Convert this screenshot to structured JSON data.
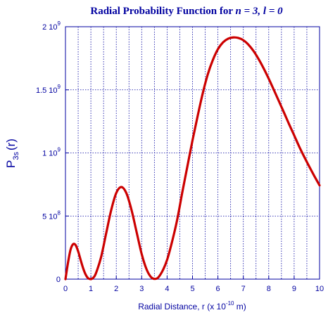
{
  "chart_data": {
    "type": "line",
    "title": {
      "prefix": "Radial Probability Function for ",
      "n_symbol": "n",
      "n_eq": " = 3, ",
      "l_symbol": "l",
      "l_eq": " = 0"
    },
    "xlabel": {
      "text": "Radial Distance, r (x 10",
      "exponent": "-10",
      "suffix": " m)"
    },
    "ylabel": {
      "main": "P",
      "sub": "3s",
      "tail": "(r)"
    },
    "xlim": [
      0,
      10
    ],
    "ylim": [
      0,
      2000000000
    ],
    "x_ticks": [
      {
        "value": 0,
        "label": "0"
      },
      {
        "value": 1,
        "label": "1"
      },
      {
        "value": 2,
        "label": "2"
      },
      {
        "value": 3,
        "label": "3"
      },
      {
        "value": 4,
        "label": "4"
      },
      {
        "value": 5,
        "label": "5"
      },
      {
        "value": 6,
        "label": "6"
      },
      {
        "value": 7,
        "label": "7"
      },
      {
        "value": 8,
        "label": "8"
      },
      {
        "value": 9,
        "label": "9"
      },
      {
        "value": 10,
        "label": "10"
      }
    ],
    "y_ticks": [
      {
        "value": 0,
        "mantissa": "0",
        "exponent": ""
      },
      {
        "value": 500000000,
        "mantissa": "5 10",
        "exponent": "8"
      },
      {
        "value": 1000000000,
        "mantissa": "1 10",
        "exponent": "9"
      },
      {
        "value": 1500000000,
        "mantissa": "1.5 10",
        "exponent": "9"
      },
      {
        "value": 2000000000,
        "mantissa": "2 10",
        "exponent": "9"
      }
    ],
    "grid": true,
    "grid_style": "dotted",
    "x_minor_grid_step": 0.5,
    "series": [
      {
        "color": "#cc0000",
        "x": [
          0,
          0.1,
          0.2,
          0.3,
          0.4,
          0.5,
          0.6,
          0.7,
          0.8,
          0.9,
          1.0,
          1.1,
          1.2,
          1.4,
          1.6,
          1.8,
          2.0,
          2.2,
          2.4,
          2.6,
          2.8,
          3.0,
          3.2,
          3.4,
          3.6,
          3.8,
          4.0,
          4.2,
          4.4,
          4.6,
          4.8,
          5.0,
          5.2,
          5.4,
          5.6,
          5.8,
          6.0,
          6.2,
          6.4,
          6.6,
          6.8,
          7.0,
          7.2,
          7.4,
          7.6,
          7.8,
          8.0,
          8.2,
          8.4,
          8.6,
          8.8,
          9.0,
          9.2,
          9.4,
          9.6,
          9.8,
          10.0
        ],
        "y": [
          0,
          130000000,
          233000000,
          277000000,
          270000000,
          220000000,
          150000000,
          84000000,
          34000000,
          6000000,
          0,
          12000000,
          47000000,
          173000000,
          361000000,
          547000000,
          683000000,
          730000000,
          680000000,
          548000000,
          373000000,
          199000000,
          74000000,
          10000000,
          5000000,
          58000000,
          153000000,
          300000000,
          474000000,
          690000000,
          895000000,
          1100000000,
          1290000000,
          1470000000,
          1622000000,
          1736000000,
          1822000000,
          1876000000,
          1905000000,
          1915000000,
          1911000000,
          1893000000,
          1858000000,
          1808000000,
          1744000000,
          1670000000,
          1588000000,
          1500000000,
          1410000000,
          1320000000,
          1228000000,
          1140000000,
          1050000000,
          968000000,
          890000000,
          815000000,
          743000000
        ]
      }
    ]
  }
}
